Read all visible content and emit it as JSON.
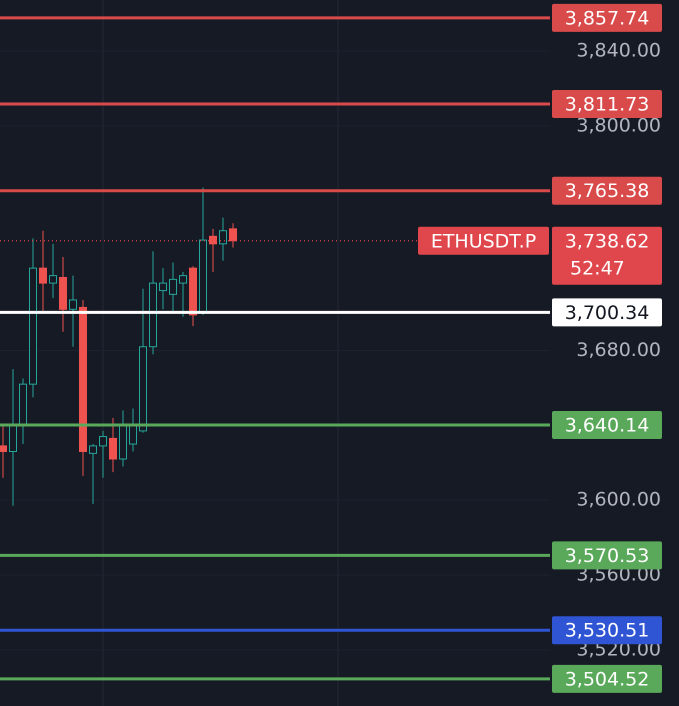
{
  "chart_data": {
    "type": "candlestick",
    "open": [
      3629,
      3626,
      3640,
      3662,
      3724,
      3716,
      3719,
      3702,
      3703,
      3625,
      3629,
      3633,
      3622,
      3630,
      3637,
      3682,
      3712,
      3710,
      3716,
      3724,
      3700,
      3741,
      3737,
      3745
    ],
    "high": [
      3640,
      3670,
      3665,
      3740,
      3744,
      3737,
      3730,
      3720,
      3707,
      3630,
      3637,
      3644,
      3648,
      3649,
      3713,
      3733,
      3724,
      3727,
      3722,
      3725,
      3767,
      3745,
      3751,
      3748
    ],
    "low": [
      3612,
      3597,
      3630,
      3655,
      3700,
      3708,
      3690,
      3682,
      3613,
      3598,
      3612,
      3615,
      3618,
      3626,
      3636,
      3678,
      3702,
      3700,
      3698,
      3693,
      3699,
      3722,
      3728,
      3735
    ],
    "close": [
      3626,
      3640,
      3662,
      3724,
      3716,
      3720,
      3702,
      3707,
      3626,
      3629,
      3634,
      3622,
      3640,
      3640,
      3682,
      3716,
      3716,
      3718,
      3720,
      3699,
      3739,
      3737,
      3744,
      3738.62
    ],
    "up_color": "#26a69a",
    "down_color": "#ef5350",
    "ylim": [
      3490,
      3867.3
    ],
    "yticks": [
      {
        "value": 3840,
        "label": "3,840.00"
      },
      {
        "value": 3800,
        "label": "3,800.00"
      },
      {
        "value": 3680,
        "label": "3,680.00"
      },
      {
        "value": 3600,
        "label": "3,600.00"
      },
      {
        "value": 3560,
        "label": "3,560.00"
      },
      {
        "value": 3520,
        "label": "3,520.00"
      }
    ],
    "grid": true,
    "price_lines": [
      {
        "value": 3857.74,
        "label": "3,857.74",
        "color": "#d94a4a"
      },
      {
        "value": 3811.73,
        "label": "3,811.73",
        "color": "#d94a4a"
      },
      {
        "value": 3765.38,
        "label": "3,765.38",
        "color": "#d94a4a"
      },
      {
        "value": 3700.34,
        "label": "3,700.34",
        "color": "#ffffff"
      },
      {
        "value": 3640.14,
        "label": "3,640.14",
        "color": "#5aa95a"
      },
      {
        "value": 3570.53,
        "label": "3,570.53",
        "color": "#5aa95a"
      },
      {
        "value": 3530.51,
        "label": "3,530.51",
        "color": "#2f55d4"
      },
      {
        "value": 3504.52,
        "label": "3,504.52",
        "color": "#5aa95a"
      }
    ],
    "last_price": {
      "symbol": "ETHUSDT.P",
      "value": 3738.62,
      "label": "3,738.62",
      "countdown": "52:47",
      "color": "#e0474c"
    }
  }
}
